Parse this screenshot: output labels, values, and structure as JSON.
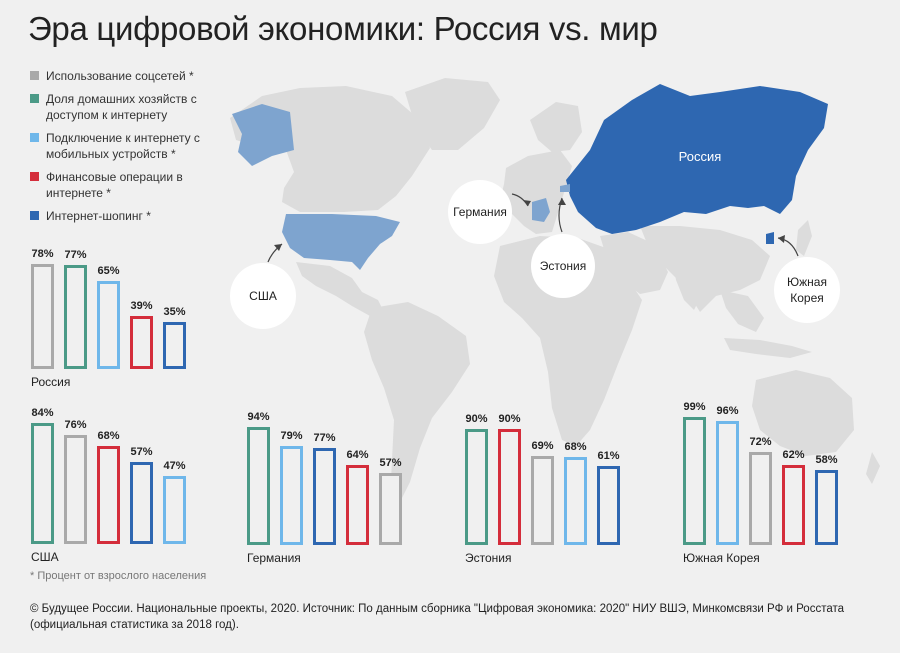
{
  "title": "Эра цифровой экономики: Россия vs. мир",
  "legend": [
    {
      "label": "Использование соцсетей *",
      "color": "#a9a9a9"
    },
    {
      "label": "Доля домашних хозяйств с доступом к интернету",
      "color": "#4b9a87"
    },
    {
      "label": "Подключение к интернету с мобильных устройств *",
      "color": "#6fb7ea"
    },
    {
      "label": "Финансовые операции в интернете *",
      "color": "#d42d3b"
    },
    {
      "label": "Интернет-шопинг *",
      "color": "#2e67b1"
    }
  ],
  "map_labels": {
    "russia": "Россия",
    "germany": "Германия",
    "estonia": "Эстония",
    "usa": "США",
    "korea_line1": "Южная",
    "korea_line2": "Корея"
  },
  "chart_data": [
    {
      "type": "bar",
      "country": "Россия",
      "series": [
        {
          "name": "Использование соцсетей *",
          "value": 78,
          "color": "#a9a9a9"
        },
        {
          "name": "Доля домашних хозяйств с доступом к интернету",
          "value": 77,
          "color": "#4b9a87"
        },
        {
          "name": "Подключение к интернету с мобильных устройств *",
          "value": 65,
          "color": "#6fb7ea"
        },
        {
          "name": "Финансовые операции в интернете *",
          "value": 39,
          "color": "#d42d3b"
        },
        {
          "name": "Интернет-шопинг *",
          "value": 35,
          "color": "#2e67b1"
        }
      ]
    },
    {
      "type": "bar",
      "country": "США",
      "series": [
        {
          "name": "Доля домашних хозяйств с доступом к интернету",
          "value": 84,
          "color": "#4b9a87"
        },
        {
          "name": "Использование соцсетей *",
          "value": 76,
          "color": "#a9a9a9"
        },
        {
          "name": "Финансовые операции в интернете *",
          "value": 68,
          "color": "#d42d3b"
        },
        {
          "name": "Интернет-шопинг *",
          "value": 57,
          "color": "#2e67b1"
        },
        {
          "name": "Подключение к интернету с мобильных устройств *",
          "value": 47,
          "color": "#6fb7ea"
        }
      ]
    },
    {
      "type": "bar",
      "country": "Германия",
      "series": [
        {
          "name": "Доля домашних хозяйств с доступом к интернету",
          "value": 94,
          "color": "#4b9a87"
        },
        {
          "name": "Подключение к интернету с мобильных устройств *",
          "value": 79,
          "color": "#6fb7ea"
        },
        {
          "name": "Интернет-шопинг *",
          "value": 77,
          "color": "#2e67b1"
        },
        {
          "name": "Финансовые операции в интернете *",
          "value": 64,
          "color": "#d42d3b"
        },
        {
          "name": "Использование соцсетей *",
          "value": 57,
          "color": "#a9a9a9"
        }
      ]
    },
    {
      "type": "bar",
      "country": "Эстония",
      "series": [
        {
          "name": "Доля домашних хозяйств с доступом к интернету",
          "value": 90,
          "color": "#4b9a87"
        },
        {
          "name": "Финансовые операции в интернете *",
          "value": 90,
          "color": "#d42d3b"
        },
        {
          "name": "Использование соцсетей *",
          "value": 69,
          "color": "#a9a9a9"
        },
        {
          "name": "Подключение к интернету с мобильных устройств *",
          "value": 68,
          "color": "#6fb7ea"
        },
        {
          "name": "Интернет-шопинг *",
          "value": 61,
          "color": "#2e67b1"
        }
      ]
    },
    {
      "type": "bar",
      "country": "Южная Корея",
      "series": [
        {
          "name": "Доля домашних хозяйств с доступом к интернету",
          "value": 99,
          "color": "#4b9a87"
        },
        {
          "name": "Подключение к интернету с мобильных устройств *",
          "value": 96,
          "color": "#6fb7ea"
        },
        {
          "name": "Использование соцсетей *",
          "value": 72,
          "color": "#a9a9a9"
        },
        {
          "name": "Финансовые операции в интернете *",
          "value": 62,
          "color": "#d42d3b"
        },
        {
          "name": "Интернет-шопинг *",
          "value": 58,
          "color": "#2e67b1"
        }
      ]
    }
  ],
  "footnote": "* Процент от взрослого населения",
  "source": "© Будущее России. Национальные проекты, 2020. Источник: По данным сборника \"Цифровая экономика: 2020\" НИУ ВШЭ, Минкомсвязи РФ и Росстата (официальная статистика за 2018 год)."
}
